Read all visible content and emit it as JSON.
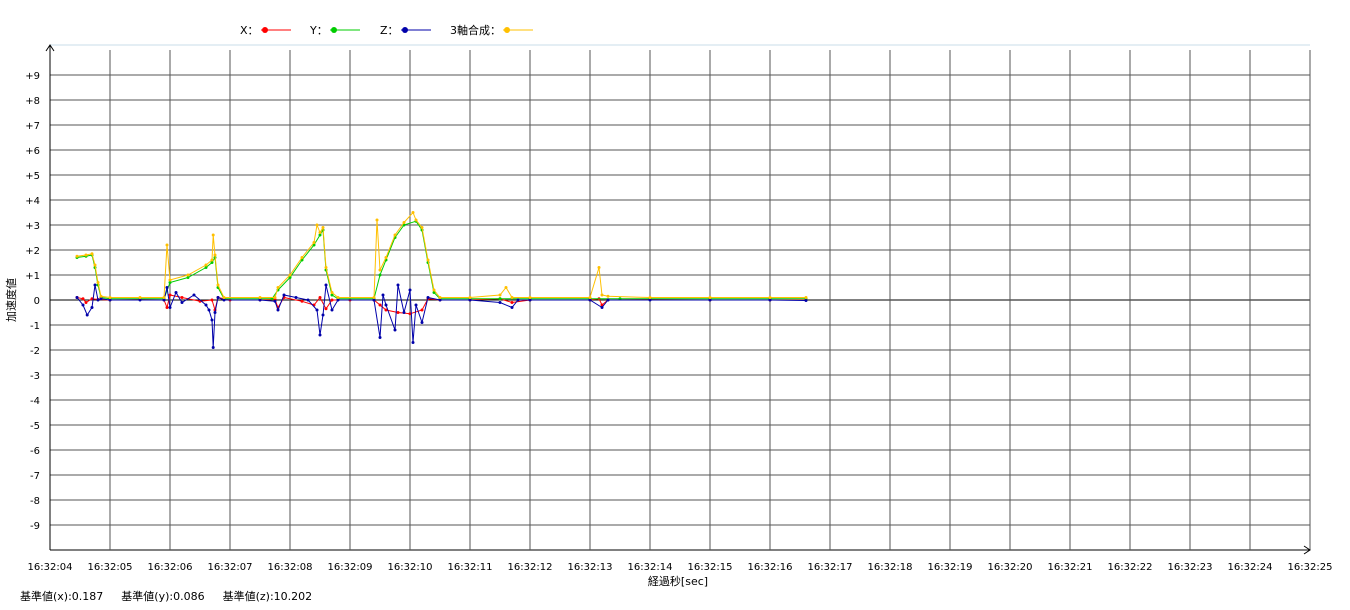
{
  "legend": [
    {
      "label": "X：",
      "color": "#ff0000",
      "icon": "red-line-marker-icon"
    },
    {
      "label": "Y：",
      "color": "#00cc00",
      "icon": "green-line-marker-icon"
    },
    {
      "label": "Z：",
      "color": "#0000aa",
      "icon": "blue-line-marker-icon"
    },
    {
      "label": "3軸合成：",
      "color": "#ffc000",
      "icon": "yellow-line-marker-icon"
    }
  ],
  "footer": {
    "base_x": "基準値(x):0.187",
    "base_y": "基準値(y):0.086",
    "base_z": "基準値(z):10.202"
  },
  "chart_data": {
    "type": "line",
    "title": "",
    "xlabel": "経過秒[sec]",
    "ylabel": "加速度値",
    "ylim": [
      -10,
      10
    ],
    "x_range": [
      "16:32:04",
      "16:32:25"
    ],
    "yticks": [
      "+9",
      "+8",
      "+7",
      "+6",
      "+5",
      "+4",
      "+3",
      "+2",
      "+1",
      "0",
      "-1",
      "-2",
      "-3",
      "-4",
      "-5",
      "-6",
      "-7",
      "-8",
      "-9"
    ],
    "xticks": [
      "16:32:04",
      "16:32:05",
      "16:32:06",
      "16:32:07",
      "16:32:08",
      "16:32:09",
      "16:32:10",
      "16:32:11",
      "16:32:12",
      "16:32:13",
      "16:32:14",
      "16:32:15",
      "16:32:16",
      "16:32:17",
      "16:32:18",
      "16:32:19",
      "16:32:20",
      "16:32:21",
      "16:32:22",
      "16:32:23",
      "16:32:24",
      "16:32:25"
    ],
    "grid": true,
    "legend_position": "top-left",
    "series": [
      {
        "name": "X",
        "color": "#ff0000",
        "points": [
          [
            0.45,
            0.1
          ],
          [
            0.55,
            0.05
          ],
          [
            0.6,
            -0.1
          ],
          [
            0.7,
            0.05
          ],
          [
            0.8,
            0.02
          ],
          [
            1.0,
            0.0
          ],
          [
            1.5,
            0.02
          ],
          [
            1.9,
            0.0
          ],
          [
            1.95,
            -0.3
          ],
          [
            2.0,
            0.2
          ],
          [
            2.2,
            0.1
          ],
          [
            2.5,
            -0.05
          ],
          [
            2.7,
            0.0
          ],
          [
            2.75,
            -0.4
          ],
          [
            2.8,
            0.1
          ],
          [
            3.0,
            0.0
          ],
          [
            3.5,
            0.0
          ],
          [
            3.75,
            0.02
          ],
          [
            3.8,
            -0.3
          ],
          [
            3.9,
            0.1
          ],
          [
            4.2,
            -0.05
          ],
          [
            4.4,
            -0.2
          ],
          [
            4.5,
            0.1
          ],
          [
            4.6,
            -0.35
          ],
          [
            4.7,
            0.0
          ],
          [
            5.0,
            0.0
          ],
          [
            5.4,
            0.0
          ],
          [
            5.5,
            -0.2
          ],
          [
            5.6,
            -0.4
          ],
          [
            5.8,
            -0.5
          ],
          [
            6.0,
            -0.55
          ],
          [
            6.2,
            -0.4
          ],
          [
            6.3,
            0.05
          ],
          [
            6.5,
            0.0
          ],
          [
            7.0,
            0.0
          ],
          [
            7.5,
            0.05
          ],
          [
            7.7,
            -0.1
          ],
          [
            8.0,
            0.0
          ],
          [
            9.0,
            0.0
          ],
          [
            9.15,
            0.05
          ],
          [
            9.2,
            -0.2
          ],
          [
            9.3,
            0.0
          ],
          [
            10.0,
            0.02
          ],
          [
            11.0,
            0.0
          ],
          [
            12.0,
            0.0
          ],
          [
            12.6,
            0.0
          ]
        ]
      },
      {
        "name": "Y",
        "color": "#00cc00",
        "points": [
          [
            0.45,
            1.7
          ],
          [
            0.6,
            1.75
          ],
          [
            0.7,
            1.8
          ],
          [
            0.75,
            1.3
          ],
          [
            0.8,
            0.6
          ],
          [
            0.85,
            0.1
          ],
          [
            1.0,
            0.05
          ],
          [
            1.5,
            0.05
          ],
          [
            1.9,
            0.05
          ],
          [
            2.0,
            0.7
          ],
          [
            2.3,
            0.9
          ],
          [
            2.6,
            1.3
          ],
          [
            2.7,
            1.5
          ],
          [
            2.75,
            1.7
          ],
          [
            2.8,
            0.5
          ],
          [
            2.9,
            0.05
          ],
          [
            3.5,
            0.05
          ],
          [
            3.7,
            0.05
          ],
          [
            3.8,
            0.4
          ],
          [
            4.0,
            0.9
          ],
          [
            4.2,
            1.6
          ],
          [
            4.4,
            2.2
          ],
          [
            4.5,
            2.6
          ],
          [
            4.55,
            2.8
          ],
          [
            4.6,
            1.2
          ],
          [
            4.7,
            0.2
          ],
          [
            4.8,
            0.05
          ],
          [
            5.4,
            0.05
          ],
          [
            5.5,
            1.0
          ],
          [
            5.6,
            1.6
          ],
          [
            5.75,
            2.5
          ],
          [
            5.9,
            3.0
          ],
          [
            6.1,
            3.15
          ],
          [
            6.2,
            2.8
          ],
          [
            6.3,
            1.5
          ],
          [
            6.4,
            0.3
          ],
          [
            6.5,
            0.05
          ],
          [
            7.0,
            0.05
          ],
          [
            7.5,
            0.05
          ],
          [
            8.0,
            0.05
          ],
          [
            9.0,
            0.05
          ],
          [
            9.5,
            0.05
          ],
          [
            10.0,
            0.05
          ],
          [
            11.0,
            0.05
          ],
          [
            12.0,
            0.05
          ],
          [
            12.6,
            0.05
          ]
        ]
      },
      {
        "name": "Z",
        "color": "#0000aa",
        "points": [
          [
            0.45,
            0.1
          ],
          [
            0.55,
            -0.2
          ],
          [
            0.62,
            -0.6
          ],
          [
            0.7,
            -0.3
          ],
          [
            0.75,
            0.6
          ],
          [
            0.8,
            0.0
          ],
          [
            0.85,
            0.05
          ],
          [
            1.0,
            0.0
          ],
          [
            1.5,
            0.0
          ],
          [
            1.9,
            0.0
          ],
          [
            1.95,
            0.5
          ],
          [
            2.0,
            -0.3
          ],
          [
            2.1,
            0.3
          ],
          [
            2.2,
            -0.1
          ],
          [
            2.4,
            0.2
          ],
          [
            2.6,
            -0.2
          ],
          [
            2.65,
            -0.4
          ],
          [
            2.7,
            -0.8
          ],
          [
            2.72,
            -1.9
          ],
          [
            2.75,
            -0.5
          ],
          [
            2.8,
            0.1
          ],
          [
            2.9,
            0.0
          ],
          [
            3.5,
            0.0
          ],
          [
            3.75,
            -0.05
          ],
          [
            3.8,
            -0.4
          ],
          [
            3.9,
            0.2
          ],
          [
            4.1,
            0.1
          ],
          [
            4.3,
            0.0
          ],
          [
            4.45,
            -0.4
          ],
          [
            4.5,
            -1.4
          ],
          [
            4.55,
            -0.6
          ],
          [
            4.6,
            0.6
          ],
          [
            4.7,
            -0.4
          ],
          [
            4.8,
            0.0
          ],
          [
            5.4,
            0.0
          ],
          [
            5.5,
            -1.5
          ],
          [
            5.55,
            0.2
          ],
          [
            5.6,
            -0.2
          ],
          [
            5.75,
            -1.2
          ],
          [
            5.8,
            0.6
          ],
          [
            5.9,
            -0.5
          ],
          [
            6.0,
            0.4
          ],
          [
            6.05,
            -1.7
          ],
          [
            6.1,
            -0.2
          ],
          [
            6.2,
            -0.9
          ],
          [
            6.3,
            0.1
          ],
          [
            6.5,
            0.0
          ],
          [
            7.0,
            0.0
          ],
          [
            7.5,
            -0.1
          ],
          [
            7.7,
            -0.3
          ],
          [
            7.8,
            0.0
          ],
          [
            8.0,
            0.0
          ],
          [
            9.0,
            0.0
          ],
          [
            9.2,
            -0.3
          ],
          [
            9.3,
            0.0
          ],
          [
            10.0,
            0.0
          ],
          [
            11.0,
            0.0
          ],
          [
            12.0,
            0.0
          ],
          [
            12.6,
            -0.02
          ]
        ]
      },
      {
        "name": "3軸合成",
        "color": "#ffc000",
        "points": [
          [
            0.45,
            1.75
          ],
          [
            0.6,
            1.8
          ],
          [
            0.7,
            1.85
          ],
          [
            0.75,
            1.4
          ],
          [
            0.8,
            0.7
          ],
          [
            0.85,
            0.15
          ],
          [
            1.0,
            0.1
          ],
          [
            1.5,
            0.1
          ],
          [
            1.9,
            0.1
          ],
          [
            1.95,
            2.2
          ],
          [
            2.0,
            0.8
          ],
          [
            2.3,
            1.0
          ],
          [
            2.6,
            1.4
          ],
          [
            2.7,
            1.6
          ],
          [
            2.72,
            2.6
          ],
          [
            2.75,
            1.8
          ],
          [
            2.8,
            0.6
          ],
          [
            2.9,
            0.1
          ],
          [
            3.5,
            0.1
          ],
          [
            3.75,
            0.1
          ],
          [
            3.8,
            0.5
          ],
          [
            4.0,
            1.0
          ],
          [
            4.2,
            1.7
          ],
          [
            4.4,
            2.3
          ],
          [
            4.45,
            3.0
          ],
          [
            4.5,
            2.7
          ],
          [
            4.55,
            2.9
          ],
          [
            4.6,
            1.3
          ],
          [
            4.7,
            0.3
          ],
          [
            4.8,
            0.1
          ],
          [
            5.4,
            0.1
          ],
          [
            5.45,
            3.2
          ],
          [
            5.5,
            1.2
          ],
          [
            5.6,
            1.7
          ],
          [
            5.75,
            2.6
          ],
          [
            5.9,
            3.1
          ],
          [
            6.05,
            3.5
          ],
          [
            6.1,
            3.2
          ],
          [
            6.2,
            2.9
          ],
          [
            6.3,
            1.6
          ],
          [
            6.4,
            0.4
          ],
          [
            6.5,
            0.1
          ],
          [
            7.0,
            0.1
          ],
          [
            7.5,
            0.2
          ],
          [
            7.6,
            0.5
          ],
          [
            7.7,
            0.1
          ],
          [
            8.0,
            0.1
          ],
          [
            9.0,
            0.1
          ],
          [
            9.15,
            1.3
          ],
          [
            9.2,
            0.2
          ],
          [
            9.3,
            0.15
          ],
          [
            10.0,
            0.1
          ],
          [
            11.0,
            0.1
          ],
          [
            12.0,
            0.1
          ],
          [
            12.6,
            0.1
          ]
        ]
      }
    ]
  }
}
